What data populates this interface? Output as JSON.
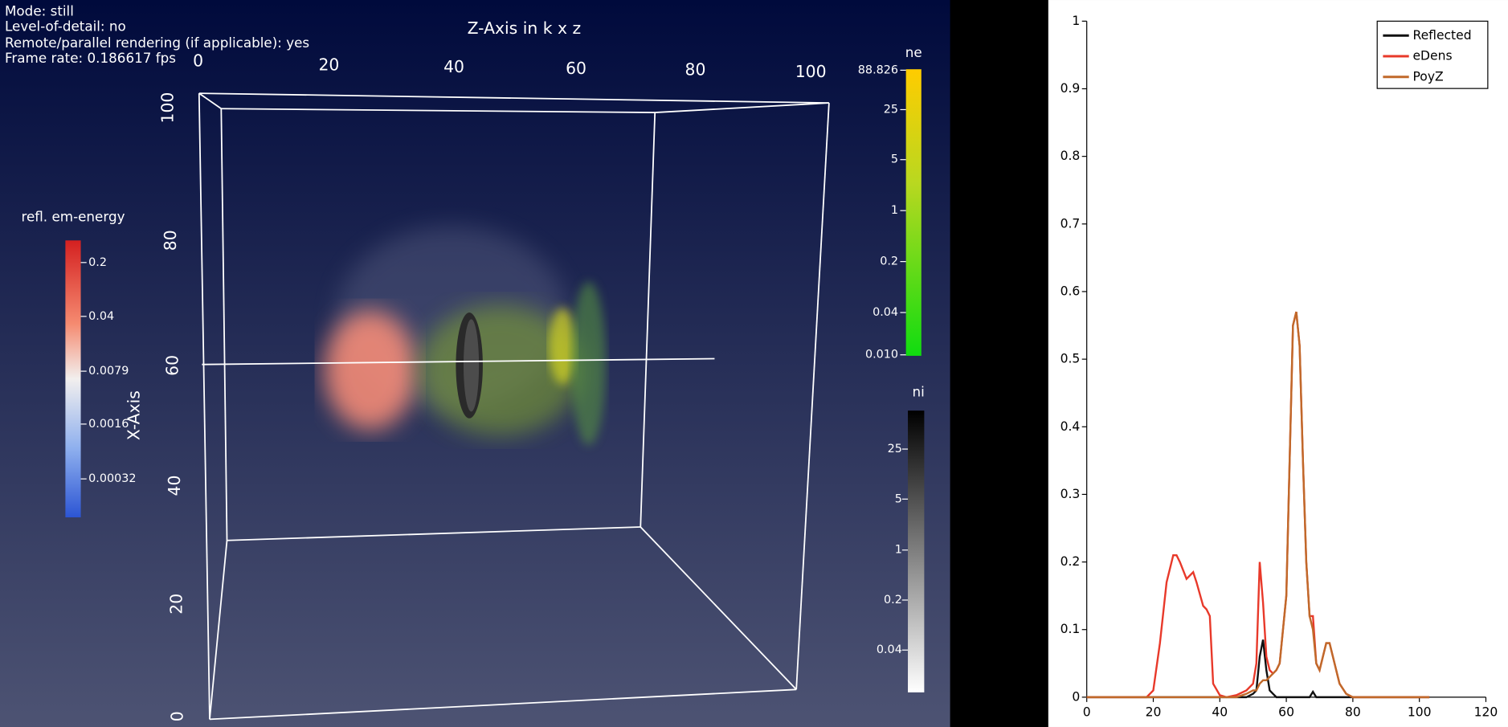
{
  "render_view": {
    "info": [
      "Mode: still",
      "Level-of-detail: no",
      "Remote/parallel rendering (if applicable): yes",
      "Frame rate: 0.186617 fps"
    ],
    "z_axis_title": "Z-Axis in k x z",
    "z_ticks": [
      "0",
      "20",
      "40",
      "60",
      "80",
      "100"
    ],
    "x_axis_title": "X-Axis",
    "x_ticks": [
      "100",
      "80",
      "60",
      "40",
      "20",
      "0"
    ],
    "colorbars": [
      {
        "title": "refl. em-energy",
        "labels": [
          "0.2",
          "0.04",
          "0.0079",
          "0.0016",
          "0.00032"
        ]
      },
      {
        "title": "ne",
        "labels": [
          "88.826",
          "25",
          "5",
          "1",
          "0.2",
          "0.04",
          "0.010"
        ]
      },
      {
        "title": "ni",
        "labels": [
          "25",
          "5",
          "1",
          "0.2",
          "0.04"
        ]
      }
    ]
  },
  "chart_data": {
    "type": "line",
    "x": [
      0,
      10,
      18,
      20,
      22,
      24,
      26,
      27,
      28,
      30,
      31,
      32,
      33,
      35,
      36,
      37,
      38,
      40,
      42,
      45,
      48,
      50,
      51,
      52,
      53,
      54,
      55,
      56,
      57,
      58,
      60,
      61,
      62,
      63,
      64,
      65,
      66,
      67,
      68,
      69,
      70,
      71,
      72,
      73,
      74,
      76,
      78,
      80,
      85,
      90,
      100,
      103
    ],
    "series": [
      {
        "name": "Reflected",
        "color": "#111111",
        "values": [
          0,
          0,
          0,
          0,
          0,
          0,
          0,
          0,
          0,
          0,
          0,
          0,
          0,
          0,
          0,
          0,
          0,
          0,
          0,
          0,
          0,
          0.005,
          0.01,
          0.06,
          0.085,
          0.04,
          0.01,
          0.005,
          0,
          0,
          0,
          0,
          0,
          0,
          0,
          0,
          0,
          0,
          0.008,
          0,
          0,
          0,
          0,
          0,
          0,
          0,
          0,
          0,
          0,
          0,
          0,
          0
        ]
      },
      {
        "name": "eDens",
        "color": "#e8392a",
        "values": [
          0,
          0,
          0,
          0.01,
          0.08,
          0.17,
          0.21,
          0.21,
          0.2,
          0.175,
          0.18,
          0.185,
          0.17,
          0.135,
          0.13,
          0.12,
          0.02,
          0.003,
          0,
          0.003,
          0.01,
          0.02,
          0.05,
          0.2,
          0.14,
          0.06,
          0.04,
          0.035,
          0.04,
          0.05,
          0.15,
          0.35,
          0.55,
          0.57,
          0.52,
          0.35,
          0.2,
          0.12,
          0.12,
          0.05,
          0.04,
          0.06,
          0.08,
          0.08,
          0.06,
          0.02,
          0.005,
          0,
          0,
          0,
          0,
          0
        ]
      },
      {
        "name": "PoyZ",
        "color": "#c0692a",
        "values": [
          0,
          0,
          0,
          0,
          0,
          0,
          0,
          0,
          0,
          0,
          0,
          0,
          0,
          0,
          0,
          0,
          0,
          0,
          0,
          0,
          0.005,
          0.01,
          0.01,
          0.02,
          0.025,
          0.025,
          0.03,
          0.035,
          0.04,
          0.05,
          0.15,
          0.35,
          0.55,
          0.57,
          0.52,
          0.35,
          0.2,
          0.12,
          0.1,
          0.05,
          0.04,
          0.06,
          0.08,
          0.08,
          0.06,
          0.02,
          0.005,
          0,
          0,
          0,
          0,
          0
        ]
      }
    ],
    "xlim": [
      0,
      120
    ],
    "xticks": [
      0,
      20,
      40,
      60,
      80,
      100,
      120
    ],
    "ylim": [
      0,
      1
    ],
    "yticks": [
      0,
      0.1,
      0.2,
      0.3,
      0.4,
      0.5,
      0.6,
      0.7,
      0.8,
      0.9,
      1
    ],
    "legend": "top-right"
  }
}
